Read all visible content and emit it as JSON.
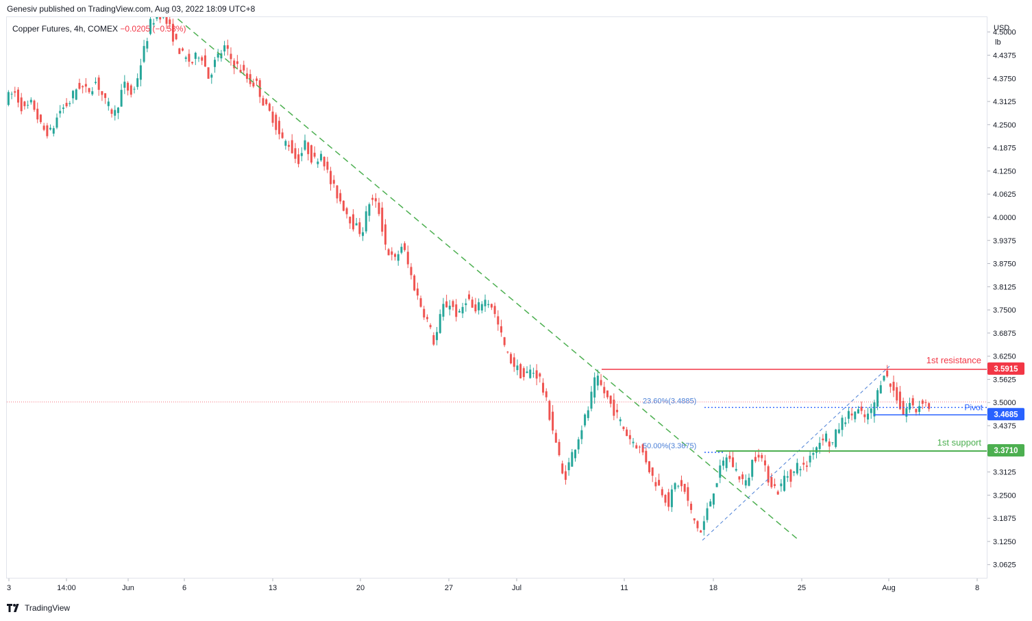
{
  "header": {
    "published_text": "Genesiv published on TradingView.com, Aug 03, 2022 18:09 UTC+8"
  },
  "legend": {
    "symbol": "Copper Futures, 4h, COMEX",
    "change": "−0.0205 (−0.58%)"
  },
  "price_scale": {
    "currency": "USD",
    "unit": "lb"
  },
  "footer": {
    "brand": "TradingView"
  },
  "colors": {
    "up": "#26a69a",
    "down": "#ef5350",
    "resistance": "#f23645",
    "pivot": "#2962ff",
    "support": "#4caf50",
    "trendline": "#4caf50",
    "fib": "#4a7fd6"
  },
  "icons": {
    "logo": "tradingview-logo-icon"
  },
  "chart_data": {
    "type": "candlestick",
    "title": "Copper Futures, 4h, COMEX",
    "y_ticks": [
      "4.5000",
      "4.4375",
      "4.3750",
      "4.3125",
      "4.2500",
      "4.1875",
      "4.1250",
      "4.0625",
      "4.0000",
      "3.9375",
      "3.8750",
      "3.8125",
      "3.7500",
      "3.6875",
      "3.6250",
      "3.5625",
      "3.5000",
      "3.4375",
      "3.3125",
      "3.2500",
      "3.1875",
      "3.1250",
      "3.0625"
    ],
    "ylim": [
      3.025,
      4.542
    ],
    "x_ticks": [
      "3",
      "14:00",
      "Jun",
      "6",
      "13",
      "20",
      "27",
      "Jul",
      "11",
      "18",
      "25",
      "Aug",
      "8"
    ],
    "series": [
      {
        "period": "May 25 – Jun 2",
        "path": [
          4.32,
          4.34,
          4.29,
          4.31,
          4.24,
          4.23,
          4.29,
          4.31,
          4.36,
          4.34,
          4.37,
          4.31,
          4.28,
          4.36,
          4.33,
          4.43,
          4.53,
          4.55
        ]
      },
      {
        "period": "Jun 2 – Jul 15",
        "path": [
          4.55,
          4.52,
          4.47,
          4.43,
          4.42,
          4.45,
          4.38,
          4.43,
          4.46,
          4.42,
          4.4,
          4.37,
          4.36,
          4.3,
          4.27,
          4.21,
          4.2,
          4.15,
          4.2,
          4.15,
          4.18,
          4.1,
          4.06,
          4.02,
          3.98,
          3.96,
          4.05,
          4.03,
          3.92,
          3.88,
          3.93,
          3.85,
          3.78,
          3.73,
          3.66,
          3.76,
          3.77,
          3.73,
          3.79,
          3.74,
          3.78,
          3.77,
          3.7,
          3.63,
          3.6,
          3.57,
          3.59,
          3.57,
          3.49,
          3.4,
          3.29,
          3.36,
          3.42,
          3.48,
          3.57,
          3.53,
          3.49,
          3.45,
          3.41,
          3.39,
          3.36,
          3.3,
          3.27,
          3.23,
          3.29,
          3.26,
          3.19,
          3.15
        ]
      },
      {
        "period": "Jul 15 – Aug 3",
        "path": [
          3.15,
          3.21,
          3.27,
          3.32,
          3.36,
          3.33,
          3.3,
          3.28,
          3.35,
          3.37,
          3.31,
          3.28,
          3.26,
          3.31,
          3.3,
          3.34,
          3.32,
          3.37,
          3.39,
          3.42,
          3.38,
          3.43,
          3.46,
          3.47,
          3.48,
          3.46,
          3.47,
          3.52,
          3.59,
          3.55,
          3.52,
          3.47,
          3.5,
          3.48,
          3.51,
          3.49
        ]
      }
    ],
    "annotations": {
      "resistance": {
        "label": "1st resistance",
        "value": 3.5915,
        "value_label": "3.5915"
      },
      "pivot": {
        "label": "Pivot",
        "value": 3.4685,
        "value_label": "3.4685"
      },
      "support": {
        "label": "1st support",
        "value": 3.371,
        "value_label": "3.3710"
      },
      "fib_23_6": {
        "label": "23.60%(3.4885)",
        "value": 3.4885
      },
      "fib_50": {
        "label": "50.00%(3.3675)",
        "value": 3.3675
      },
      "downtrend_line": {
        "from": [
          4.555,
          "Jun 3"
        ],
        "to": [
          3.13,
          "Jul 22"
        ]
      },
      "uptrend_channel": {
        "from": [
          3.13,
          "Jul 15"
        ],
        "to": [
          3.6,
          "Aug 1"
        ]
      },
      "last_price_line": 3.5035
    }
  }
}
